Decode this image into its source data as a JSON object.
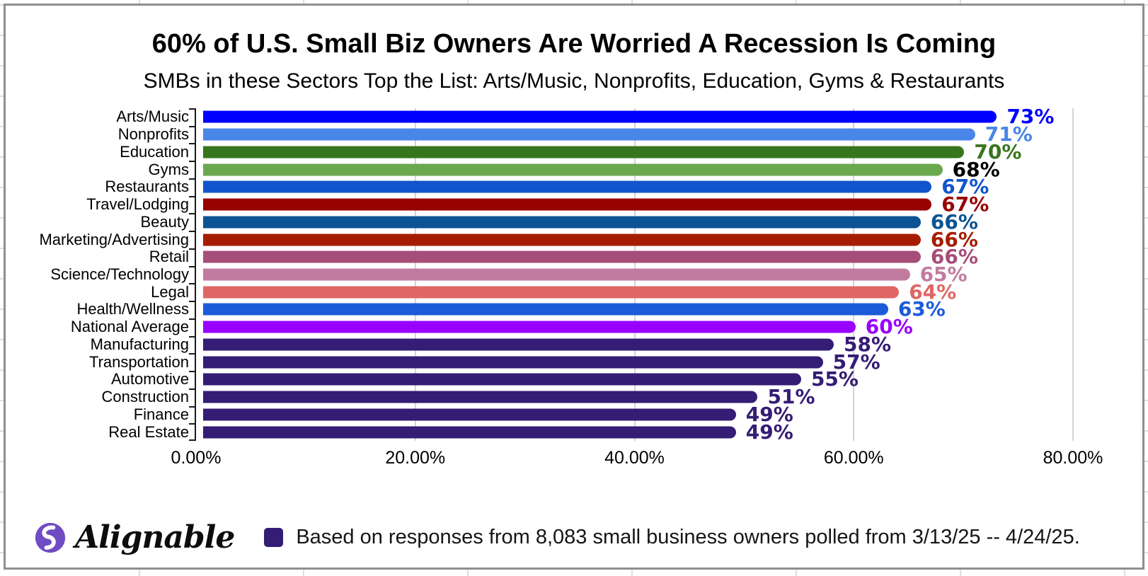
{
  "chart_data": {
    "type": "bar",
    "orientation": "horizontal",
    "title": "60% of U.S. Small Biz Owners Are Worried A Recession Is Coming",
    "subtitle": "SMBs in these Sectors Top the List: Arts/Music, Nonprofits, Education, Gyms & Restaurants",
    "xlabel": "",
    "ylabel": "",
    "xlim": [
      0,
      80
    ],
    "x_ticks": [
      "0.00%",
      "20.00%",
      "40.00%",
      "60.00%",
      "80.00%"
    ],
    "x_tick_values": [
      0,
      20,
      40,
      60,
      80
    ],
    "grid": true,
    "categories": [
      "Arts/Music",
      "Nonprofits",
      "Education",
      "Gyms",
      "Restaurants",
      "Travel/Lodging",
      "Beauty",
      "Marketing/Advertising",
      "Retail",
      "Science/Technology",
      "Legal",
      "Health/Wellness",
      "National Average",
      "Manufacturing",
      "Transportation",
      "Automotive",
      "Construction",
      "Finance",
      "Real Estate"
    ],
    "values": [
      73,
      71,
      70,
      68,
      67,
      67,
      66,
      66,
      66,
      65,
      64,
      63,
      60,
      58,
      57,
      55,
      51,
      49,
      49
    ],
    "value_labels": [
      "73%",
      "71%",
      "70%",
      "68%",
      "67%",
      "67%",
      "66%",
      "66%",
      "66%",
      "65%",
      "64%",
      "63%",
      "60%",
      "58%",
      "57%",
      "55%",
      "51%",
      "49%",
      "49%"
    ],
    "bar_colors": [
      "#0000FF",
      "#4A86E8",
      "#38761D",
      "#6AA84F",
      "#1155CC",
      "#990000",
      "#0B5394",
      "#A61C00",
      "#A64D79",
      "#C27BA0",
      "#E06666",
      "#1C5BD8",
      "#9900FF",
      "#351C75",
      "#351C75",
      "#351C75",
      "#351C75",
      "#351C75",
      "#351C75"
    ],
    "value_label_colors": [
      "#0000FF",
      "#4A86E8",
      "#38761D",
      "#000000",
      "#1155CC",
      "#990000",
      "#0B5394",
      "#A61C00",
      "#A64D79",
      "#C27BA0",
      "#E06666",
      "#1C5BD8",
      "#9900FF",
      "#351C75",
      "#351C75",
      "#351C75",
      "#351C75",
      "#351C75",
      "#351C75"
    ]
  },
  "footer": {
    "brand": "Alignable",
    "note": "Based on responses from 8,083 small business owners polled from 3/13/25 -- 4/24/25.",
    "legend_swatch_color": "#351C75",
    "logo_color": "#6F4CC3"
  }
}
